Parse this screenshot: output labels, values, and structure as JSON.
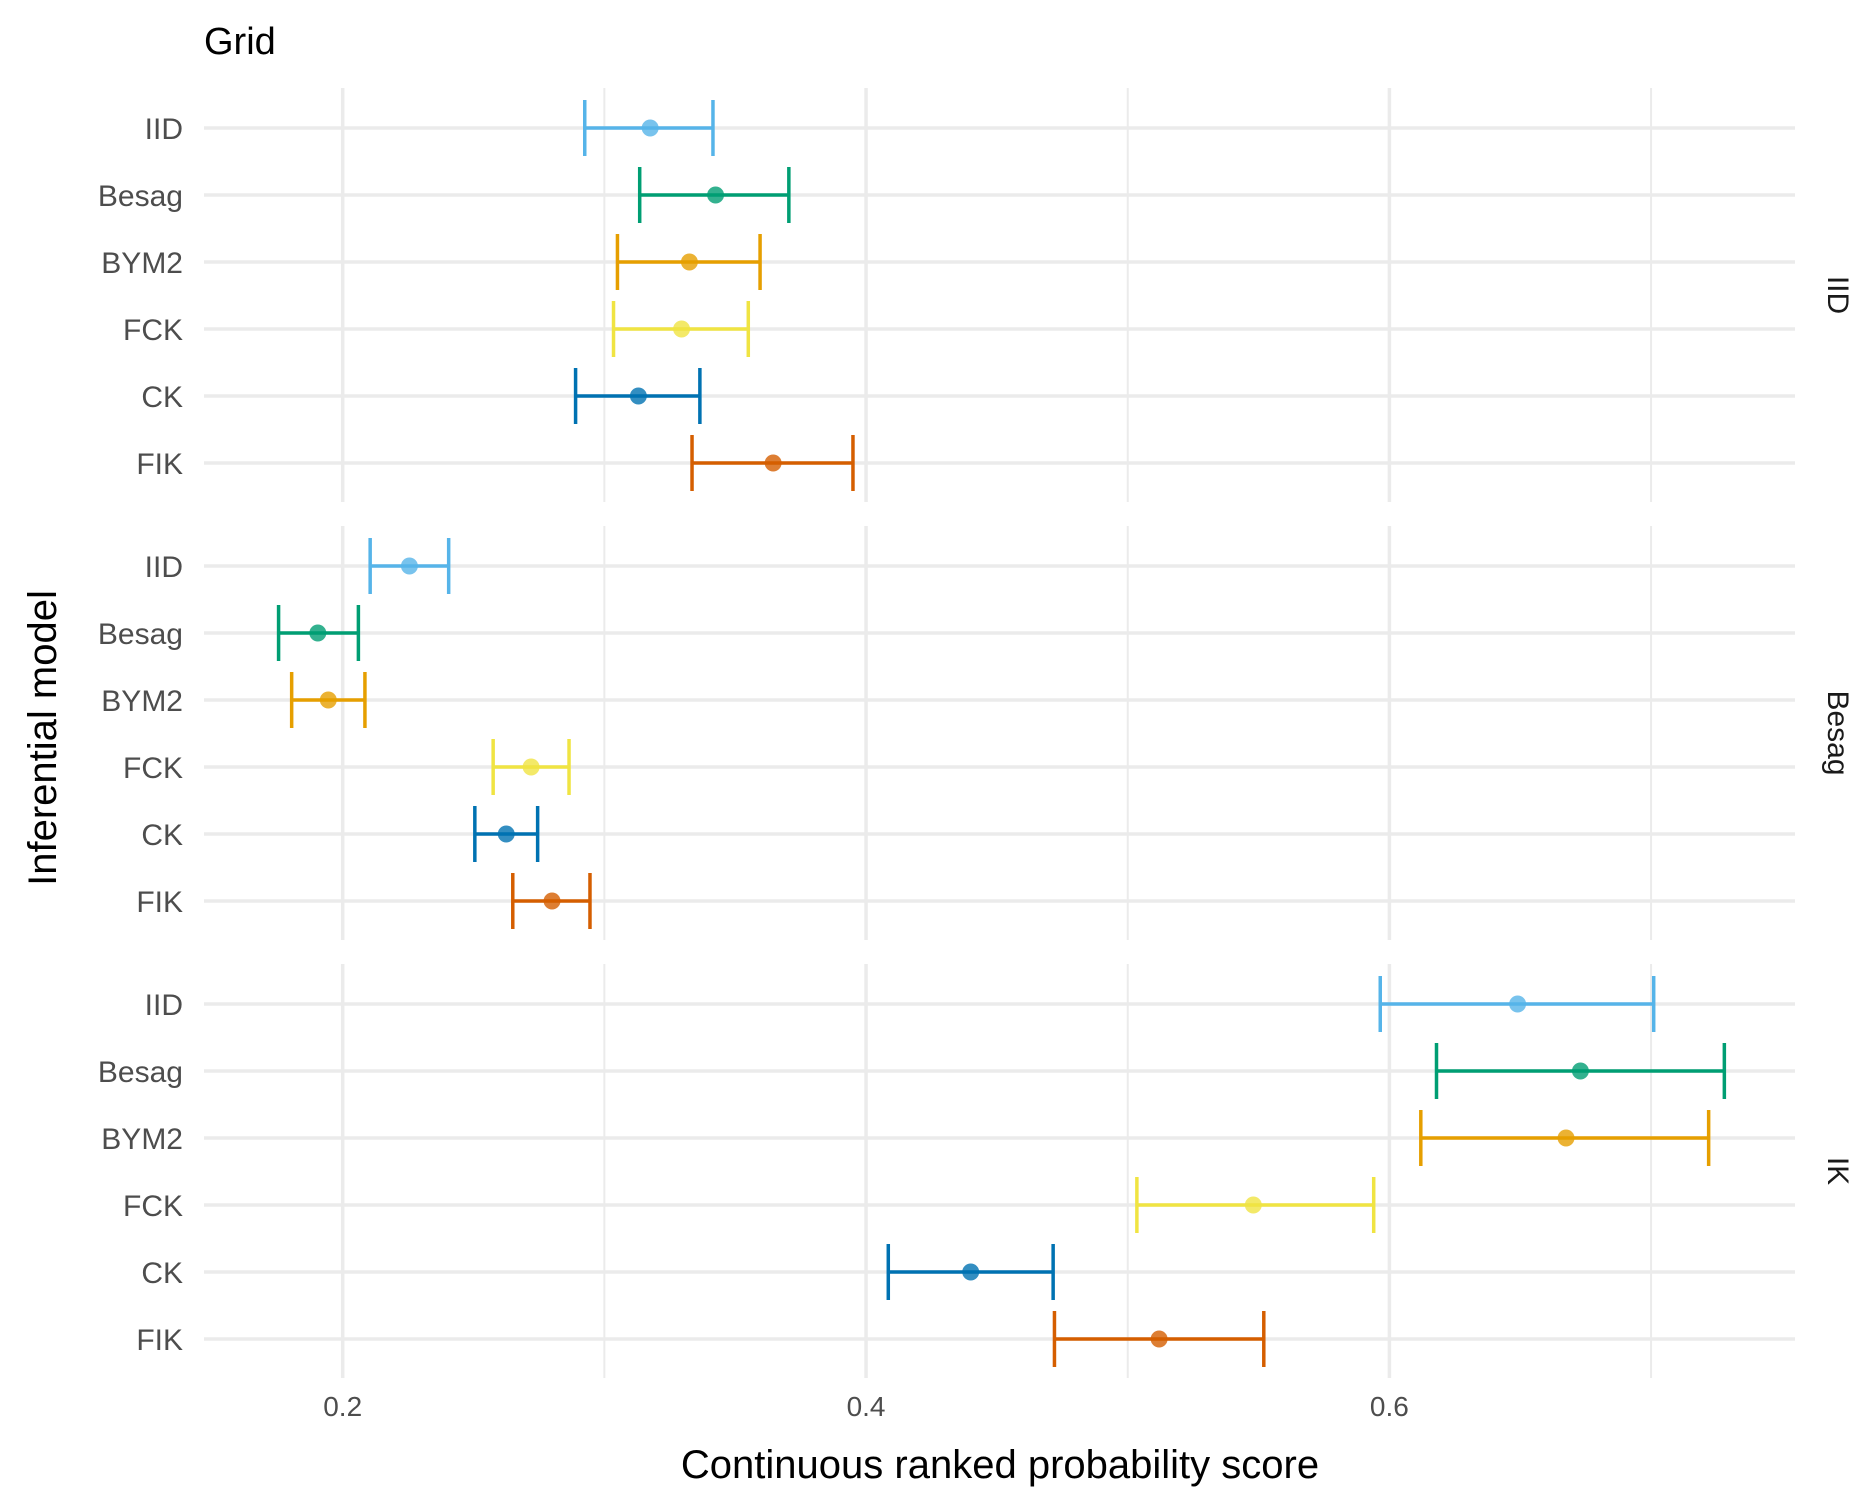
{
  "chart_data": {
    "type": "errorbar",
    "title": "Grid",
    "xlabel": "Continuous ranked probability score",
    "ylabel": "Inferential model",
    "xlim": [
      0.147,
      0.755
    ],
    "xticks": [
      0.2,
      0.4,
      0.6
    ],
    "xtick_labels": [
      "0.2",
      "0.4",
      "0.6"
    ],
    "x_minor_grid": [
      0.3,
      0.5,
      0.7
    ],
    "grid": true,
    "categories": [
      "IID",
      "Besag",
      "BYM2",
      "FCK",
      "CK",
      "FIK"
    ],
    "colors": {
      "IID": "#56B4E9",
      "Besag": "#009E73",
      "BYM2": "#E69F00",
      "FCK": "#F0E442",
      "CK": "#0072B2",
      "FIK": "#D55E00"
    },
    "panels": [
      {
        "label": "IID",
        "series": [
          {
            "name": "IID",
            "mean": 0.3175,
            "lower": 0.2925,
            "upper": 0.3415
          },
          {
            "name": "Besag",
            "mean": 0.3425,
            "lower": 0.3135,
            "upper": 0.3705
          },
          {
            "name": "BYM2",
            "mean": 0.3325,
            "lower": 0.305,
            "upper": 0.3595
          },
          {
            "name": "FCK",
            "mean": 0.3295,
            "lower": 0.3035,
            "upper": 0.355
          },
          {
            "name": "CK",
            "mean": 0.313,
            "lower": 0.289,
            "upper": 0.3365
          },
          {
            "name": "FIK",
            "mean": 0.3645,
            "lower": 0.3335,
            "upper": 0.395
          }
        ]
      },
      {
        "label": "Besag",
        "series": [
          {
            "name": "IID",
            "mean": 0.2255,
            "lower": 0.2105,
            "upper": 0.2405
          },
          {
            "name": "Besag",
            "mean": 0.1905,
            "lower": 0.1755,
            "upper": 0.206
          },
          {
            "name": "BYM2",
            "mean": 0.1945,
            "lower": 0.1805,
            "upper": 0.2085
          },
          {
            "name": "FCK",
            "mean": 0.272,
            "lower": 0.2575,
            "upper": 0.2865
          },
          {
            "name": "CK",
            "mean": 0.2625,
            "lower": 0.2505,
            "upper": 0.2745
          },
          {
            "name": "FIK",
            "mean": 0.28,
            "lower": 0.265,
            "upper": 0.2945
          }
        ]
      },
      {
        "label": "IK",
        "series": [
          {
            "name": "IID",
            "mean": 0.649,
            "lower": 0.5965,
            "upper": 0.701
          },
          {
            "name": "Besag",
            "mean": 0.673,
            "lower": 0.618,
            "upper": 0.728
          },
          {
            "name": "BYM2",
            "mean": 0.6675,
            "lower": 0.612,
            "upper": 0.722
          },
          {
            "name": "FCK",
            "mean": 0.548,
            "lower": 0.5035,
            "upper": 0.594
          },
          {
            "name": "CK",
            "mean": 0.44,
            "lower": 0.4085,
            "upper": 0.4715
          },
          {
            "name": "FIK",
            "mean": 0.512,
            "lower": 0.472,
            "upper": 0.552
          }
        ]
      }
    ]
  }
}
